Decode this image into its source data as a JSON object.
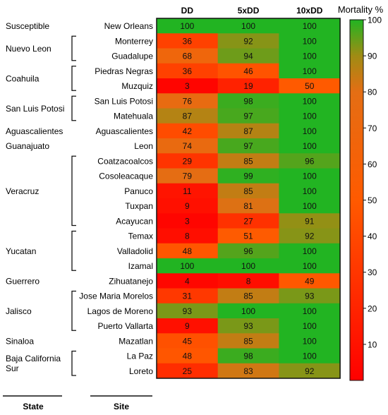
{
  "chart_data": {
    "type": "heatmap",
    "columns": [
      "DD",
      "5xDD",
      "10xDD"
    ],
    "rows": [
      {
        "site": "New Orleans",
        "values": [
          100,
          100,
          100
        ]
      },
      {
        "site": "Monterrey",
        "values": [
          36,
          92,
          100
        ]
      },
      {
        "site": "Guadalupe",
        "values": [
          68,
          94,
          100
        ]
      },
      {
        "site": "Piedras Negras",
        "values": [
          36,
          46,
          100
        ]
      },
      {
        "site": "Muzquiz",
        "values": [
          3,
          19,
          50
        ]
      },
      {
        "site": "San Luis Potosi",
        "values": [
          76,
          98,
          100
        ]
      },
      {
        "site": "Matehuala",
        "values": [
          87,
          97,
          100
        ]
      },
      {
        "site": "Aguascalientes",
        "values": [
          42,
          87,
          100
        ]
      },
      {
        "site": "Leon",
        "values": [
          74,
          97,
          100
        ]
      },
      {
        "site": "Coatzacoalcos",
        "values": [
          29,
          85,
          96
        ]
      },
      {
        "site": "Cosoleacaque",
        "values": [
          79,
          99,
          100
        ]
      },
      {
        "site": "Panuco",
        "values": [
          11,
          85,
          100
        ]
      },
      {
        "site": "Tuxpan",
        "values": [
          9,
          81,
          100
        ]
      },
      {
        "site": "Acayucan",
        "values": [
          3,
          27,
          91
        ]
      },
      {
        "site": "Temax",
        "values": [
          8,
          51,
          92
        ]
      },
      {
        "site": "Valladolid",
        "values": [
          48,
          96,
          100
        ]
      },
      {
        "site": "Izamal",
        "values": [
          100,
          100,
          100
        ]
      },
      {
        "site": "Zihuatanejo",
        "values": [
          4,
          8,
          49
        ]
      },
      {
        "site": "Jose Maria Morelos",
        "values": [
          31,
          85,
          93
        ]
      },
      {
        "site": "Lagos de Moreno",
        "values": [
          93,
          100,
          100
        ]
      },
      {
        "site": "Puerto Vallarta",
        "values": [
          9,
          93,
          100
        ]
      },
      {
        "site": "Mazatlan",
        "values": [
          45,
          85,
          100
        ]
      },
      {
        "site": "La Paz",
        "values": [
          48,
          98,
          100
        ]
      },
      {
        "site": "Loreto",
        "values": [
          25,
          83,
          92
        ]
      }
    ],
    "states": [
      {
        "name": "Susceptible",
        "first": 0,
        "last": 0,
        "bracket": false
      },
      {
        "name": "Nuevo Leon",
        "first": 1,
        "last": 2,
        "bracket": true
      },
      {
        "name": "Coahuila",
        "first": 3,
        "last": 4,
        "bracket": true
      },
      {
        "name": "San Luis Potosi",
        "first": 5,
        "last": 6,
        "bracket": true
      },
      {
        "name": "Aguascalientes",
        "first": 7,
        "last": 7,
        "bracket": false
      },
      {
        "name": "Guanajuato",
        "first": 8,
        "last": 8,
        "bracket": false
      },
      {
        "name": "Veracruz",
        "first": 9,
        "last": 13,
        "bracket": true
      },
      {
        "name": "Yucatan",
        "first": 14,
        "last": 16,
        "bracket": true
      },
      {
        "name": "Guerrero",
        "first": 17,
        "last": 17,
        "bracket": false
      },
      {
        "name": "Jalisco",
        "first": 18,
        "last": 20,
        "bracket": true
      },
      {
        "name": "Sinaloa",
        "first": 21,
        "last": 21,
        "bracket": false
      },
      {
        "name": "Baja California Sur",
        "lines": [
          "Baja California",
          "Sur"
        ],
        "first": 22,
        "last": 23,
        "bracket": true
      }
    ],
    "colorbar": {
      "title": "Mortality %",
      "range": [
        0,
        100
      ],
      "ticks": [
        10,
        20,
        30,
        40,
        50,
        60,
        70,
        80,
        90,
        100
      ],
      "color_stops": [
        {
          "value": 0,
          "color": "#ff0000"
        },
        {
          "value": 50,
          "color": "#ff5a00"
        },
        {
          "value": 80,
          "color": "#e46e14"
        },
        {
          "value": 90,
          "color": "#a08c14"
        },
        {
          "value": 100,
          "color": "#22b422"
        }
      ]
    },
    "footer_labels": {
      "state": "State",
      "site": "Site"
    }
  }
}
